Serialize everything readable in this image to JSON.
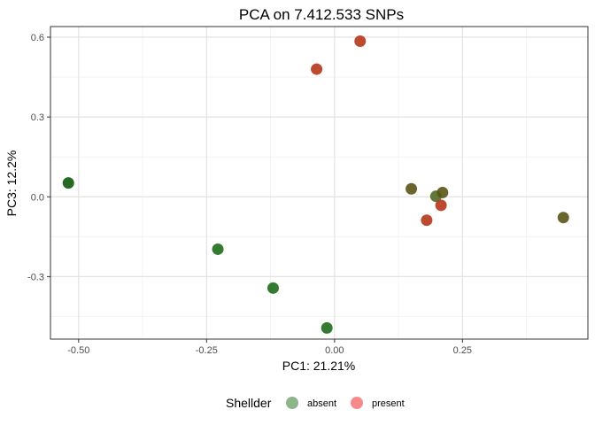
{
  "chart_data": {
    "type": "scatter",
    "title": "PCA on 7.412.533 SNPs",
    "xlabel": "PC1: 21.21%",
    "ylabel": "PC3: 12.2%",
    "xlim": [
      -0.555,
      0.495
    ],
    "ylim": [
      -0.535,
      0.64
    ],
    "x_ticks": [
      -0.5,
      -0.25,
      0.0,
      0.25
    ],
    "x_tick_labels": [
      "-0.50",
      "-0.25",
      "0.00",
      "0.25"
    ],
    "y_ticks": [
      -0.3,
      0.0,
      0.3,
      0.6
    ],
    "y_tick_labels": [
      "-0.3",
      "0.0",
      "0.3",
      "0.6"
    ],
    "grid": true,
    "legend": {
      "title": "Shellder",
      "position": "bottom",
      "entries": [
        {
          "label": "absent",
          "color": "#1a6b14"
        },
        {
          "label": "present",
          "color": "#f03c3c"
        }
      ]
    },
    "points": [
      {
        "x": -0.52,
        "y": 0.052,
        "color": "#0f5a0a"
      },
      {
        "x": -0.228,
        "y": -0.197,
        "color": "#1e6b1a"
      },
      {
        "x": -0.12,
        "y": -0.343,
        "color": "#1e6b1a"
      },
      {
        "x": -0.015,
        "y": -0.493,
        "color": "#1e6b1a"
      },
      {
        "x": -0.035,
        "y": 0.48,
        "color": "#b5361b"
      },
      {
        "x": 0.05,
        "y": 0.585,
        "color": "#b5361b"
      },
      {
        "x": 0.15,
        "y": 0.03,
        "color": "#5a5415"
      },
      {
        "x": 0.198,
        "y": 0.002,
        "color": "#4f6a22"
      },
      {
        "x": 0.211,
        "y": 0.016,
        "color": "#5a5415"
      },
      {
        "x": 0.18,
        "y": -0.088,
        "color": "#b5361b"
      },
      {
        "x": 0.208,
        "y": -0.032,
        "color": "#b5361b"
      },
      {
        "x": 0.447,
        "y": -0.078,
        "color": "#5a5415"
      }
    ]
  }
}
